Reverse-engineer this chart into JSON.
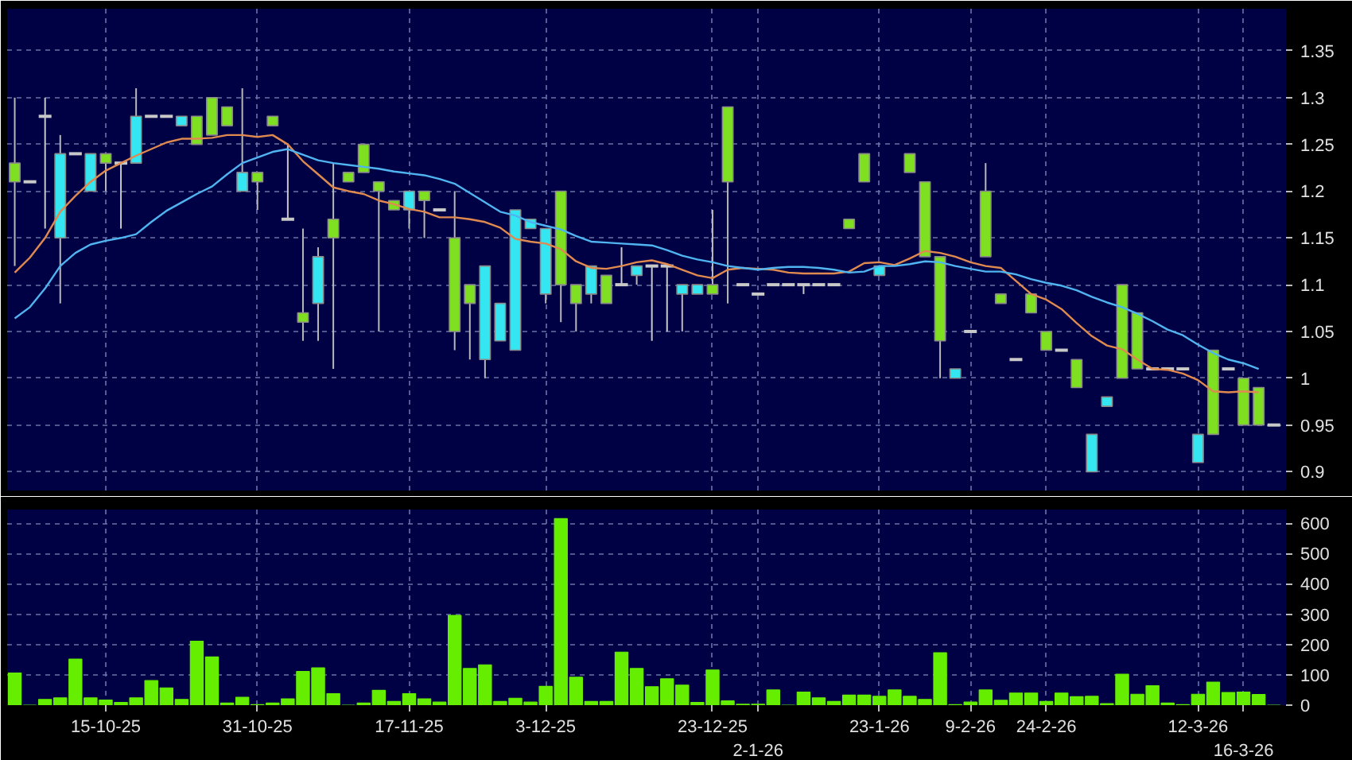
{
  "chart_data": [
    {
      "type": "candlestick",
      "tick_labels": "y",
      "grid": true,
      "categories": [
        null,
        null,
        null,
        null,
        null,
        null,
        null,
        null,
        null,
        null,
        null,
        null,
        null,
        null,
        null,
        null,
        null,
        null,
        null,
        null,
        null,
        null,
        null,
        null,
        null,
        null,
        null,
        null,
        null,
        null,
        null,
        null,
        null,
        null,
        null,
        null,
        null,
        null,
        null,
        null,
        null,
        null,
        null,
        null,
        null,
        null,
        null,
        null,
        null,
        null,
        null,
        null,
        null,
        null,
        null,
        null,
        null,
        null,
        null,
        null,
        null,
        null,
        null,
        null,
        null,
        null,
        null,
        null,
        null,
        null,
        null,
        null,
        null,
        null,
        null,
        null,
        null,
        null,
        null,
        null,
        null,
        null,
        null,
        null
      ],
      "ylim": [
        0.88,
        1.395
      ],
      "yticks": [
        0.9,
        0.95,
        1,
        1.05,
        1.1,
        1.15,
        1.2,
        1.25,
        1.3,
        1.35
      ],
      "ohlc": [
        [
          1.23,
          1.3,
          1.12,
          1.21
        ],
        [
          1.21,
          1.21,
          1.21,
          1.21
        ],
        [
          1.28,
          1.3,
          1.16,
          1.28
        ],
        [
          1.15,
          1.26,
          1.08,
          1.24
        ],
        [
          1.24,
          1.24,
          1.24,
          1.24
        ],
        [
          1.2,
          1.24,
          1.2,
          1.24
        ],
        [
          1.24,
          1.24,
          1.2,
          1.23
        ],
        [
          1.23,
          1.23,
          1.16,
          1.23
        ],
        [
          1.23,
          1.31,
          1.23,
          1.28
        ],
        [
          1.28,
          1.28,
          1.28,
          1.28
        ],
        [
          1.28,
          1.28,
          1.28,
          1.28
        ],
        [
          1.27,
          1.28,
          1.27,
          1.28
        ],
        [
          1.28,
          1.28,
          1.25,
          1.25
        ],
        [
          1.3,
          1.3,
          1.26,
          1.26
        ],
        [
          1.29,
          1.29,
          1.27,
          1.27
        ],
        [
          1.2,
          1.31,
          1.2,
          1.22
        ],
        [
          1.22,
          1.22,
          1.18,
          1.21
        ],
        [
          1.28,
          1.28,
          1.27,
          1.27
        ],
        [
          1.17,
          1.25,
          1.17,
          1.17
        ],
        [
          1.07,
          1.16,
          1.04,
          1.06
        ],
        [
          1.08,
          1.14,
          1.04,
          1.13
        ],
        [
          1.17,
          1.23,
          1.01,
          1.15
        ],
        [
          1.22,
          1.22,
          1.21,
          1.21
        ],
        [
          1.25,
          1.25,
          1.22,
          1.22
        ],
        [
          1.21,
          1.21,
          1.05,
          1.2
        ],
        [
          1.19,
          1.19,
          1.18,
          1.18
        ],
        [
          1.18,
          1.2,
          1.16,
          1.2
        ],
        [
          1.2,
          1.2,
          1.15,
          1.19
        ],
        [
          1.18,
          1.18,
          1.18,
          1.18
        ],
        [
          1.15,
          1.2,
          1.03,
          1.05
        ],
        [
          1.1,
          1.1,
          1.02,
          1.08
        ],
        [
          1.02,
          1.12,
          1.0,
          1.12
        ],
        [
          1.04,
          1.08,
          1.04,
          1.08
        ],
        [
          1.03,
          1.18,
          1.03,
          1.18
        ],
        [
          1.16,
          1.17,
          1.16,
          1.17
        ],
        [
          1.09,
          1.16,
          1.08,
          1.16
        ],
        [
          1.2,
          1.2,
          1.06,
          1.1
        ],
        [
          1.1,
          1.1,
          1.05,
          1.08
        ],
        [
          1.09,
          1.12,
          1.08,
          1.12
        ],
        [
          1.11,
          1.11,
          1.08,
          1.08
        ],
        [
          1.1,
          1.14,
          1.1,
          1.1
        ],
        [
          1.11,
          1.12,
          1.1,
          1.12
        ],
        [
          1.12,
          1.12,
          1.04,
          1.12
        ],
        [
          1.12,
          1.12,
          1.05,
          1.12
        ],
        [
          1.09,
          1.1,
          1.05,
          1.1
        ],
        [
          1.09,
          1.1,
          1.09,
          1.1
        ],
        [
          1.1,
          1.18,
          1.09,
          1.09
        ],
        [
          1.29,
          1.29,
          1.08,
          1.21
        ],
        [
          1.1,
          1.1,
          1.1,
          1.1
        ],
        [
          1.09,
          1.09,
          1.09,
          1.09
        ],
        [
          1.1,
          1.1,
          1.1,
          1.1
        ],
        [
          1.1,
          1.1,
          1.1,
          1.1
        ],
        [
          1.1,
          1.1,
          1.09,
          1.1
        ],
        [
          1.1,
          1.1,
          1.1,
          1.1
        ],
        [
          1.1,
          1.1,
          1.1,
          1.1
        ],
        [
          1.17,
          1.17,
          1.16,
          1.16
        ],
        [
          1.24,
          1.24,
          1.21,
          1.21
        ],
        [
          1.11,
          1.12,
          1.11,
          1.12
        ],
        null,
        [
          1.24,
          1.24,
          1.22,
          1.22
        ],
        [
          1.21,
          1.21,
          1.13,
          1.13
        ],
        [
          1.13,
          1.13,
          1.0,
          1.04
        ],
        [
          1.0,
          1.01,
          1.0,
          1.01
        ],
        [
          1.05,
          1.05,
          1.05,
          1.05
        ],
        [
          1.2,
          1.23,
          1.13,
          1.13
        ],
        [
          1.09,
          1.09,
          1.08,
          1.08
        ],
        [
          1.02,
          1.02,
          1.02,
          1.02
        ],
        [
          1.09,
          1.09,
          1.07,
          1.07
        ],
        [
          1.05,
          1.05,
          1.03,
          1.03
        ],
        [
          1.03,
          1.03,
          1.03,
          1.03
        ],
        [
          1.02,
          1.02,
          0.99,
          0.99
        ],
        [
          0.9,
          0.94,
          0.9,
          0.94
        ],
        [
          0.97,
          0.98,
          0.97,
          0.98
        ],
        [
          1.1,
          1.1,
          1.0,
          1.0
        ],
        [
          1.07,
          1.07,
          1.01,
          1.01
        ],
        [
          1.01,
          1.01,
          1.01,
          1.01
        ],
        [
          1.01,
          1.01,
          1.01,
          1.01
        ],
        [
          1.01,
          1.01,
          1.01,
          1.01
        ],
        [
          0.91,
          0.94,
          0.91,
          0.94
        ],
        [
          1.03,
          1.03,
          0.94,
          0.94
        ],
        [
          1.01,
          1.01,
          1.01,
          1.01
        ],
        [
          1.0,
          1.0,
          0.95,
          0.95
        ],
        [
          0.99,
          0.99,
          0.95,
          0.95
        ],
        [
          0.95,
          0.95,
          0.95,
          0.95
        ]
      ],
      "colors": [
        "#7ee021",
        "#c8c8c8",
        "#c8c8c8",
        "#33e6f2",
        "#c8c8c8",
        "#33e6f2",
        "#7ee021",
        "#c8c8c8",
        "#33e6f2",
        "#c8c8c8",
        "#c8c8c8",
        "#33e6f2",
        "#7ee021",
        "#7ee021",
        "#7ee021",
        "#33e6f2",
        "#7ee021",
        "#7ee021",
        "#c8c8c8",
        "#7ee021",
        "#33e6f2",
        "#7ee021",
        "#7ee021",
        "#7ee021",
        "#7ee021",
        "#7ee021",
        "#33e6f2",
        "#7ee021",
        "#c8c8c8",
        "#7ee021",
        "#7ee021",
        "#33e6f2",
        "#33e6f2",
        "#33e6f2",
        "#33e6f2",
        "#33e6f2",
        "#7ee021",
        "#7ee021",
        "#33e6f2",
        "#7ee021",
        "#c8c8c8",
        "#33e6f2",
        "#c8c8c8",
        "#c8c8c8",
        "#33e6f2",
        "#33e6f2",
        "#7ee021",
        "#7ee021",
        "#c8c8c8",
        "#c8c8c8",
        "#c8c8c8",
        "#c8c8c8",
        "#c8c8c8",
        "#c8c8c8",
        "#c8c8c8",
        "#7ee021",
        "#7ee021",
        "#33e6f2",
        null,
        "#7ee021",
        "#7ee021",
        "#7ee021",
        "#33e6f2",
        "#c8c8c8",
        "#7ee021",
        "#7ee021",
        "#c8c8c8",
        "#7ee021",
        "#7ee021",
        "#c8c8c8",
        "#7ee021",
        "#33e6f2",
        "#33e6f2",
        "#7ee021",
        "#7ee021",
        "#c8c8c8",
        "#c8c8c8",
        "#c8c8c8",
        "#33e6f2",
        "#7ee021",
        "#c8c8c8",
        "#7ee021",
        "#7ee021",
        "#c8c8c8"
      ],
      "series": [
        {
          "type": "line",
          "color": "#e08a50",
          "values": [
            1.113,
            1.129,
            1.15,
            1.178,
            1.195,
            1.21,
            1.222,
            1.23,
            1.238,
            1.245,
            1.252,
            1.256,
            1.256,
            1.257,
            1.26,
            1.26,
            1.258,
            1.26,
            1.25,
            1.232,
            1.218,
            1.204,
            1.2,
            1.197,
            1.19,
            1.186,
            1.181,
            1.178,
            1.172,
            1.172,
            1.17,
            1.167,
            1.161,
            1.149,
            1.146,
            1.144,
            1.138,
            1.125,
            1.118,
            1.117,
            1.12,
            1.124,
            1.126,
            1.122,
            1.116,
            1.11,
            1.107,
            1.116,
            1.118,
            1.117,
            1.116,
            1.113,
            1.112,
            1.112,
            1.112,
            1.114,
            1.123,
            1.124,
            1.121,
            1.128,
            1.136,
            1.134,
            1.13,
            1.124,
            1.12,
            1.118,
            1.104,
            1.09,
            1.084,
            1.074,
            1.059,
            1.045,
            1.035,
            1.031,
            1.02,
            1.01,
            1.009,
            1.005,
            0.998,
            0.986,
            0.985,
            0.986,
            0.985,
            null
          ]
        },
        {
          "type": "line",
          "color": "#4fb4f0",
          "values": [
            1.064,
            1.076,
            1.096,
            1.12,
            1.134,
            1.143,
            1.147,
            1.15,
            1.154,
            1.167,
            1.179,
            1.188,
            1.197,
            1.205,
            1.218,
            1.23,
            1.236,
            1.242,
            1.245,
            1.239,
            1.233,
            1.23,
            1.228,
            1.226,
            1.224,
            1.221,
            1.219,
            1.217,
            1.213,
            1.208,
            1.198,
            1.188,
            1.178,
            1.174,
            1.167,
            1.163,
            1.159,
            1.152,
            1.146,
            1.145,
            1.144,
            1.143,
            1.142,
            1.137,
            1.131,
            1.127,
            1.124,
            1.12,
            1.118,
            1.116,
            1.118,
            1.119,
            1.119,
            1.118,
            1.116,
            1.113,
            1.114,
            1.12,
            1.12,
            1.122,
            1.125,
            1.124,
            1.12,
            1.117,
            1.114,
            1.114,
            1.111,
            1.106,
            1.102,
            1.099,
            1.094,
            1.087,
            1.081,
            1.076,
            1.069,
            1.061,
            1.052,
            1.046,
            1.036,
            1.027,
            1.02,
            1.016,
            1.01,
            null
          ]
        }
      ]
    },
    {
      "type": "bar",
      "grid": true,
      "color": "#66ee00",
      "categories": [
        null,
        null,
        null,
        null,
        null,
        null,
        "15-10-25",
        null,
        null,
        null,
        null,
        null,
        null,
        null,
        null,
        null,
        "31-10-25",
        null,
        null,
        null,
        null,
        null,
        null,
        null,
        null,
        null,
        "17-11-25",
        null,
        null,
        null,
        null,
        null,
        null,
        null,
        null,
        "3-12-25",
        null,
        null,
        null,
        null,
        null,
        null,
        null,
        null,
        null,
        null,
        "23-12-25",
        null,
        null,
        "2-1-26",
        null,
        null,
        null,
        null,
        null,
        null,
        null,
        "23-1-26",
        null,
        null,
        null,
        null,
        null,
        "9-2-26",
        null,
        null,
        null,
        null,
        "24-2-26",
        null,
        null,
        null,
        null,
        null,
        null,
        null,
        null,
        null,
        "12-3-26",
        null,
        null,
        "16-3-26",
        null,
        null
      ],
      "ylim": [
        0,
        645
      ],
      "yticks": [
        0,
        100,
        200,
        300,
        400,
        500,
        600
      ],
      "values": [
        106,
        0,
        19,
        24,
        152,
        24,
        17,
        9,
        24,
        81,
        57,
        19,
        211,
        159,
        7,
        26,
        2,
        7,
        21,
        111,
        123,
        38,
        0,
        7,
        49,
        12,
        38,
        21,
        10,
        296,
        121,
        133,
        12,
        23,
        10,
        62,
        615,
        92,
        12,
        12,
        175,
        121,
        61,
        87,
        66,
        9,
        116,
        14,
        3,
        3,
        50,
        0,
        43,
        24,
        12,
        33,
        33,
        29,
        50,
        29,
        19,
        173,
        2,
        10,
        50,
        16,
        40,
        40,
        12,
        40,
        28,
        29,
        5,
        102,
        36,
        64,
        7,
        2,
        36,
        76,
        42,
        43,
        35,
        0
      ]
    }
  ]
}
